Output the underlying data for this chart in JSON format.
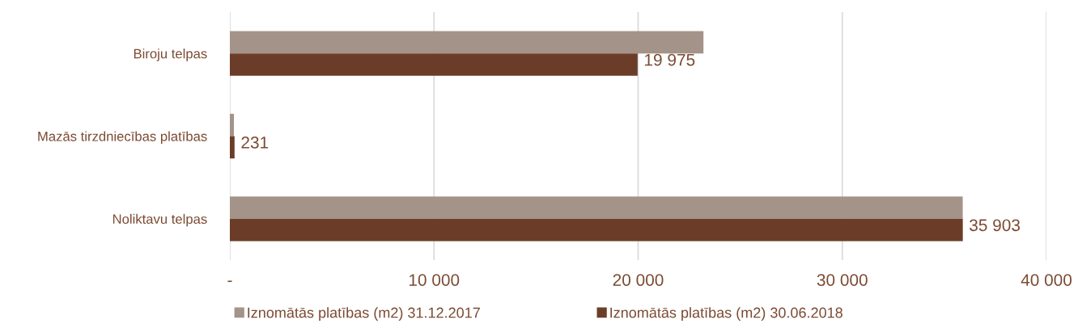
{
  "chart_data": {
    "type": "bar",
    "orientation": "horizontal",
    "categories": [
      "Biroju telpas",
      "Mazās tirzdniecības platības",
      "Noliktavu telpas"
    ],
    "series": [
      {
        "name": "Iznomātās platības (m2) 31.12.2017",
        "color": "#a49389",
        "values": [
          23200,
          200,
          35900
        ]
      },
      {
        "name": "Iznomātās platības (m2) 30.06.2018",
        "color": "#6b3d28",
        "values": [
          19975,
          231,
          35903
        ],
        "value_labels": [
          "19 975",
          "231",
          "35 903"
        ]
      }
    ],
    "xlim": [
      0,
      40000
    ],
    "xticks": [
      {
        "value": 0,
        "label": "-"
      },
      {
        "value": 10000,
        "label": "10 000"
      },
      {
        "value": 20000,
        "label": "20 000"
      },
      {
        "value": 30000,
        "label": "30 000"
      },
      {
        "value": 40000,
        "label": "40 000"
      }
    ],
    "grid": "x",
    "legend": "bottom"
  }
}
